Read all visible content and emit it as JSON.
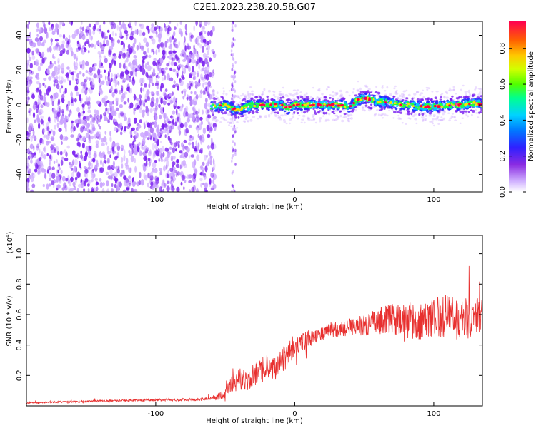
{
  "title": "C2E1.2023.238.20.58.G07",
  "chart_data": [
    {
      "type": "heatmap",
      "xlabel": "Height of straight line (km)",
      "ylabel": "Frequency (Hz)",
      "xlim": [
        -193,
        135
      ],
      "ylim": [
        -50,
        48
      ],
      "x_ticks": [
        -100,
        0,
        100
      ],
      "x_tick_labels": [
        "-100",
        "0",
        "100"
      ],
      "y_ticks": [
        -40,
        -20,
        0,
        20,
        40
      ],
      "y_tick_labels": [
        "-40",
        "-20",
        "0",
        "20",
        "40"
      ],
      "noise_region_x": [
        -193,
        -57
      ],
      "stray_strip_x": -44,
      "signal_ridge": {
        "x": [
          -60,
          -50,
          -45,
          -40,
          -35,
          -30,
          -25,
          -20,
          -15,
          -10,
          -5,
          0,
          10,
          20,
          30,
          40,
          45,
          50,
          60,
          70,
          80,
          90,
          100,
          110,
          120,
          130,
          135
        ],
        "y": [
          -1,
          0,
          -2,
          -3,
          -1,
          0,
          0,
          0,
          0,
          0,
          -2,
          0,
          0,
          0,
          0,
          -1,
          3,
          4,
          2,
          1,
          0,
          -1,
          -1,
          0,
          0,
          1,
          0
        ]
      },
      "colorbar": {
        "label": "Normalized spectral amplitude",
        "range": [
          0.0,
          0.95
        ],
        "ticks": [
          0.0,
          0.2,
          0.4,
          0.6,
          0.8
        ],
        "tick_labels": [
          "0.0",
          "0.2",
          "0.4",
          "0.6",
          "0.8"
        ]
      },
      "grid": false,
      "colors": [
        "#ffffff",
        "#c8a0ff",
        "#7a1ff0",
        "#2030ff",
        "#00c8ff",
        "#20ff40",
        "#ffe000",
        "#ff8000",
        "#ff0040"
      ]
    },
    {
      "type": "line",
      "xlabel": "Height of straight line (km)",
      "ylabel": "SNR (10 * v/v)",
      "y_multiplier": "(x10",
      "y_multiplier_exp": "4",
      "y_multiplier_close": ")",
      "xlim": [
        -193,
        135
      ],
      "ylim": [
        0,
        1.12
      ],
      "x_ticks": [
        -100,
        0,
        100
      ],
      "x_tick_labels": [
        "-100",
        "0",
        "100"
      ],
      "y_ticks": [
        0.2,
        0.4,
        0.6,
        0.8,
        1.0
      ],
      "y_tick_labels": [
        "0.2",
        "0.4",
        "0.6",
        "0.8",
        "1.0"
      ],
      "grid": false,
      "series": [
        {
          "color": "#e8302f",
          "x": [
            -193,
            -150,
            -100,
            -70,
            -60,
            -50,
            -45,
            -40,
            -35,
            -30,
            -25,
            -20,
            -15,
            -10,
            -5,
            0,
            5,
            10,
            15,
            20,
            25,
            30,
            40,
            50,
            60,
            70,
            80,
            90,
            100,
            110,
            120,
            130,
            135
          ],
          "y": [
            0.02,
            0.03,
            0.04,
            0.04,
            0.05,
            0.08,
            0.14,
            0.18,
            0.16,
            0.2,
            0.22,
            0.26,
            0.24,
            0.3,
            0.34,
            0.4,
            0.42,
            0.44,
            0.45,
            0.47,
            0.5,
            0.5,
            0.52,
            0.53,
            0.56,
            0.58,
            0.55,
            0.56,
            0.57,
            0.6,
            0.57,
            0.58,
            0.58
          ],
          "noise_amplitude": [
            0.005,
            0.006,
            0.008,
            0.009,
            0.012,
            0.04,
            0.06,
            0.07,
            0.07,
            0.08,
            0.08,
            0.09,
            0.09,
            0.09,
            0.09,
            0.07,
            0.06,
            0.06,
            0.05,
            0.05,
            0.05,
            0.05,
            0.06,
            0.07,
            0.09,
            0.1,
            0.12,
            0.13,
            0.13,
            0.15,
            0.14,
            0.13,
            0.13
          ]
        }
      ]
    }
  ]
}
